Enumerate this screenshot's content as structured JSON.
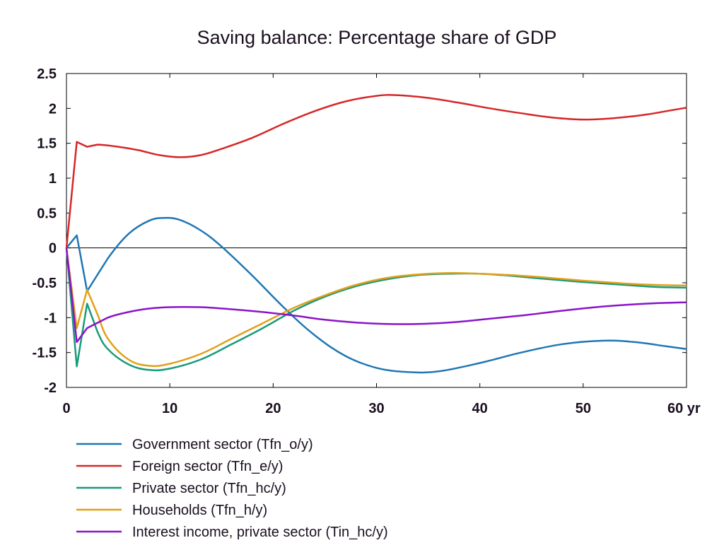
{
  "chart_data": {
    "type": "line",
    "title": "Saving balance: Percentage share of GDP",
    "xlabel": "",
    "ylabel": "",
    "x_unit": "yr",
    "xlim": [
      0,
      60
    ],
    "ylim": [
      -2,
      2.5
    ],
    "x_ticks": [
      0,
      10,
      20,
      30,
      40,
      50,
      60
    ],
    "x_tick_labels": [
      "0",
      "10",
      "20",
      "30",
      "40",
      "50",
      "60 yr"
    ],
    "y_ticks": [
      2.5,
      2,
      1.5,
      1,
      0.5,
      0,
      -0.5,
      -1,
      -1.5,
      -2
    ],
    "y_tick_labels": [
      "2.5",
      "2",
      "1.5",
      "1",
      "0.5",
      "0",
      "-0.5",
      "-1",
      "-1.5",
      "-2"
    ],
    "zero_line": true,
    "grid": false,
    "legend_position": "bottom-left",
    "series": [
      {
        "name": "Government sector (Tfn_o/y)",
        "color": "#1f77b4",
        "points": [
          [
            0,
            0
          ],
          [
            1,
            0.18
          ],
          [
            2,
            -0.62
          ],
          [
            4,
            -0.15
          ],
          [
            6,
            0.2
          ],
          [
            8,
            0.39
          ],
          [
            9.5,
            0.43
          ],
          [
            11,
            0.4
          ],
          [
            13,
            0.25
          ],
          [
            15,
            0.02
          ],
          [
            18,
            -0.4
          ],
          [
            21,
            -0.85
          ],
          [
            24,
            -1.25
          ],
          [
            27,
            -1.55
          ],
          [
            30,
            -1.72
          ],
          [
            33,
            -1.78
          ],
          [
            36,
            -1.77
          ],
          [
            40,
            -1.65
          ],
          [
            44,
            -1.5
          ],
          [
            48,
            -1.38
          ],
          [
            52,
            -1.33
          ],
          [
            55,
            -1.35
          ],
          [
            58,
            -1.41
          ],
          [
            60,
            -1.45
          ]
        ]
      },
      {
        "name": "Foreign sector (Tfn_e/y)",
        "color": "#d62728",
        "points": [
          [
            0,
            0
          ],
          [
            1,
            1.52
          ],
          [
            2,
            1.45
          ],
          [
            3,
            1.48
          ],
          [
            5,
            1.45
          ],
          [
            7,
            1.4
          ],
          [
            9,
            1.33
          ],
          [
            11,
            1.3
          ],
          [
            13,
            1.33
          ],
          [
            15,
            1.42
          ],
          [
            18,
            1.58
          ],
          [
            21,
            1.78
          ],
          [
            24,
            1.96
          ],
          [
            27,
            2.1
          ],
          [
            30,
            2.18
          ],
          [
            32,
            2.19
          ],
          [
            35,
            2.15
          ],
          [
            38,
            2.08
          ],
          [
            41,
            2
          ],
          [
            44,
            1.93
          ],
          [
            47,
            1.87
          ],
          [
            50,
            1.84
          ],
          [
            53,
            1.86
          ],
          [
            56,
            1.91
          ],
          [
            58,
            1.96
          ],
          [
            60,
            2.01
          ]
        ]
      },
      {
        "name": "Private sector (Tfn_hc/y)",
        "color": "#1a9a7a",
        "points": [
          [
            0,
            0
          ],
          [
            1,
            -1.7
          ],
          [
            2,
            -0.8
          ],
          [
            3,
            -1.2
          ],
          [
            4,
            -1.45
          ],
          [
            6,
            -1.67
          ],
          [
            8,
            -1.75
          ],
          [
            10,
            -1.73
          ],
          [
            13,
            -1.6
          ],
          [
            16,
            -1.38
          ],
          [
            19,
            -1.15
          ],
          [
            22,
            -0.9
          ],
          [
            25,
            -0.7
          ],
          [
            28,
            -0.55
          ],
          [
            31,
            -0.45
          ],
          [
            34,
            -0.39
          ],
          [
            37,
            -0.37
          ],
          [
            40,
            -0.37
          ],
          [
            43,
            -0.4
          ],
          [
            46,
            -0.44
          ],
          [
            50,
            -0.49
          ],
          [
            54,
            -0.53
          ],
          [
            57,
            -0.56
          ],
          [
            60,
            -0.57
          ]
        ]
      },
      {
        "name": "Households (Tfn_h/y)",
        "color": "#e1a01a",
        "points": [
          [
            0,
            0
          ],
          [
            1,
            -1.15
          ],
          [
            2,
            -0.6
          ],
          [
            3,
            -0.95
          ],
          [
            4,
            -1.3
          ],
          [
            6,
            -1.6
          ],
          [
            8,
            -1.69
          ],
          [
            10,
            -1.66
          ],
          [
            13,
            -1.52
          ],
          [
            16,
            -1.3
          ],
          [
            19,
            -1.08
          ],
          [
            22,
            -0.86
          ],
          [
            25,
            -0.68
          ],
          [
            28,
            -0.53
          ],
          [
            31,
            -0.43
          ],
          [
            34,
            -0.38
          ],
          [
            37,
            -0.36
          ],
          [
            40,
            -0.37
          ],
          [
            43,
            -0.39
          ],
          [
            46,
            -0.42
          ],
          [
            50,
            -0.47
          ],
          [
            54,
            -0.51
          ],
          [
            57,
            -0.53
          ],
          [
            60,
            -0.54
          ]
        ]
      },
      {
        "name": "Interest income, private sector (Tin_hc/y)",
        "color": "#8a14c8",
        "points": [
          [
            0,
            0
          ],
          [
            1,
            -1.35
          ],
          [
            2,
            -1.15
          ],
          [
            4,
            -1.0
          ],
          [
            6,
            -0.92
          ],
          [
            8,
            -0.87
          ],
          [
            10,
            -0.85
          ],
          [
            13,
            -0.85
          ],
          [
            16,
            -0.88
          ],
          [
            19,
            -0.92
          ],
          [
            22,
            -0.97
          ],
          [
            25,
            -1.03
          ],
          [
            28,
            -1.07
          ],
          [
            31,
            -1.09
          ],
          [
            34,
            -1.09
          ],
          [
            37,
            -1.07
          ],
          [
            40,
            -1.03
          ],
          [
            44,
            -0.97
          ],
          [
            48,
            -0.9
          ],
          [
            52,
            -0.84
          ],
          [
            56,
            -0.8
          ],
          [
            60,
            -0.78
          ]
        ]
      }
    ]
  }
}
